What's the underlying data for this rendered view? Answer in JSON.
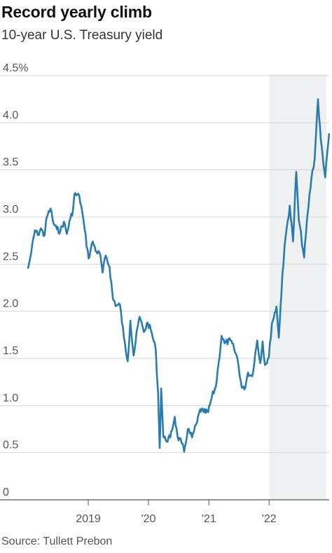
{
  "title": "Record yearly climb",
  "subtitle": "10-year U.S. Treasury yield",
  "source": "Source: Tullett Prebon",
  "colors": {
    "line": "#2a7cae",
    "shade": "#eef0f2",
    "grid": "#d6d6d6",
    "axis": "#555555"
  },
  "chart_data": {
    "type": "line",
    "title": "Record yearly climb",
    "subtitle": "10-year U.S. Treasury yield",
    "xlabel": "",
    "ylabel": "",
    "ylim": [
      0,
      4.5
    ],
    "xlim": [
      "2018-01-01",
      "2022-12-31"
    ],
    "grid": true,
    "shaded_region": [
      "2022-01-01",
      "2022-12-31"
    ],
    "y_ticks": [
      {
        "value": 0,
        "label": "0"
      },
      {
        "value": 0.5,
        "label": "0.5"
      },
      {
        "value": 1.0,
        "label": "1.0"
      },
      {
        "value": 1.5,
        "label": "1.5"
      },
      {
        "value": 2.0,
        "label": "2.0"
      },
      {
        "value": 2.5,
        "label": "2.5"
      },
      {
        "value": 3.0,
        "label": "3.0"
      },
      {
        "value": 3.5,
        "label": "3.5"
      },
      {
        "value": 4.0,
        "label": "4.0"
      },
      {
        "value": 4.5,
        "label": "4.5%"
      }
    ],
    "x_ticks": [
      {
        "value": "2019-01-01",
        "label": "2019"
      },
      {
        "value": "2020-01-01",
        "label": "'20"
      },
      {
        "value": "2021-01-01",
        "label": "'21"
      },
      {
        "value": "2022-01-01",
        "label": "'22"
      }
    ],
    "series": [
      {
        "points": [
          [
            "2018-01-02",
            2.46
          ],
          [
            "2018-01-22",
            2.64
          ],
          [
            "2018-02-12",
            2.86
          ],
          [
            "2018-03-01",
            2.81
          ],
          [
            "2018-03-20",
            2.88
          ],
          [
            "2018-04-10",
            2.8
          ],
          [
            "2018-04-25",
            3.0
          ],
          [
            "2018-05-17",
            3.09
          ],
          [
            "2018-06-05",
            2.93
          ],
          [
            "2018-06-25",
            2.87
          ],
          [
            "2018-07-16",
            2.85
          ],
          [
            "2018-08-06",
            2.95
          ],
          [
            "2018-08-24",
            2.82
          ],
          [
            "2018-09-14",
            2.98
          ],
          [
            "2018-10-01",
            3.08
          ],
          [
            "2018-10-09",
            3.24
          ],
          [
            "2018-11-08",
            3.22
          ],
          [
            "2018-11-26",
            3.05
          ],
          [
            "2018-12-10",
            2.87
          ],
          [
            "2019-01-03",
            2.56
          ],
          [
            "2019-01-28",
            2.74
          ],
          [
            "2019-02-20",
            2.63
          ],
          [
            "2019-03-15",
            2.6
          ],
          [
            "2019-03-29",
            2.41
          ],
          [
            "2019-04-17",
            2.59
          ],
          [
            "2019-05-10",
            2.47
          ],
          [
            "2019-05-31",
            2.13
          ],
          [
            "2019-06-21",
            2.06
          ],
          [
            "2019-07-12",
            2.07
          ],
          [
            "2019-08-05",
            1.72
          ],
          [
            "2019-08-28",
            1.47
          ],
          [
            "2019-09-13",
            1.9
          ],
          [
            "2019-10-03",
            1.53
          ],
          [
            "2019-10-28",
            1.84
          ],
          [
            "2019-11-08",
            1.94
          ],
          [
            "2019-12-04",
            1.78
          ],
          [
            "2019-12-27",
            1.88
          ],
          [
            "2020-01-21",
            1.77
          ],
          [
            "2020-02-14",
            1.59
          ],
          [
            "2020-02-28",
            1.13
          ],
          [
            "2020-03-09",
            0.55
          ],
          [
            "2020-03-18",
            1.18
          ],
          [
            "2020-03-31",
            0.67
          ],
          [
            "2020-04-15",
            0.63
          ],
          [
            "2020-05-12",
            0.66
          ],
          [
            "2020-06-08",
            0.88
          ],
          [
            "2020-06-25",
            0.67
          ],
          [
            "2020-07-20",
            0.6
          ],
          [
            "2020-08-04",
            0.51
          ],
          [
            "2020-08-26",
            0.75
          ],
          [
            "2020-09-21",
            0.66
          ],
          [
            "2020-10-21",
            0.82
          ],
          [
            "2020-11-09",
            0.96
          ],
          [
            "2020-12-01",
            0.93
          ],
          [
            "2020-12-28",
            0.93
          ],
          [
            "2021-01-19",
            1.09
          ],
          [
            "2021-02-12",
            1.2
          ],
          [
            "2021-03-01",
            1.45
          ],
          [
            "2021-03-19",
            1.74
          ],
          [
            "2021-04-06",
            1.66
          ],
          [
            "2021-05-12",
            1.69
          ],
          [
            "2021-06-03",
            1.6
          ],
          [
            "2021-06-24",
            1.49
          ],
          [
            "2021-07-19",
            1.19
          ],
          [
            "2021-08-04",
            1.17
          ],
          [
            "2021-08-26",
            1.35
          ],
          [
            "2021-09-20",
            1.31
          ],
          [
            "2021-10-21",
            1.69
          ],
          [
            "2021-11-08",
            1.45
          ],
          [
            "2021-11-23",
            1.68
          ],
          [
            "2021-12-07",
            1.43
          ],
          [
            "2021-12-30",
            1.51
          ],
          [
            "2022-01-18",
            1.87
          ],
          [
            "2022-02-15",
            2.05
          ],
          [
            "2022-03-01",
            1.72
          ],
          [
            "2022-03-22",
            2.38
          ],
          [
            "2022-04-11",
            2.79
          ],
          [
            "2022-05-06",
            3.12
          ],
          [
            "2022-05-26",
            2.74
          ],
          [
            "2022-06-14",
            3.48
          ],
          [
            "2022-06-30",
            2.97
          ],
          [
            "2022-08-01",
            2.57
          ],
          [
            "2022-08-22",
            3.03
          ],
          [
            "2022-09-14",
            3.41
          ],
          [
            "2022-10-04",
            3.62
          ],
          [
            "2022-10-24",
            4.25
          ],
          [
            "2022-11-10",
            3.82
          ],
          [
            "2022-12-07",
            3.42
          ],
          [
            "2022-12-30",
            3.88
          ]
        ]
      }
    ]
  }
}
